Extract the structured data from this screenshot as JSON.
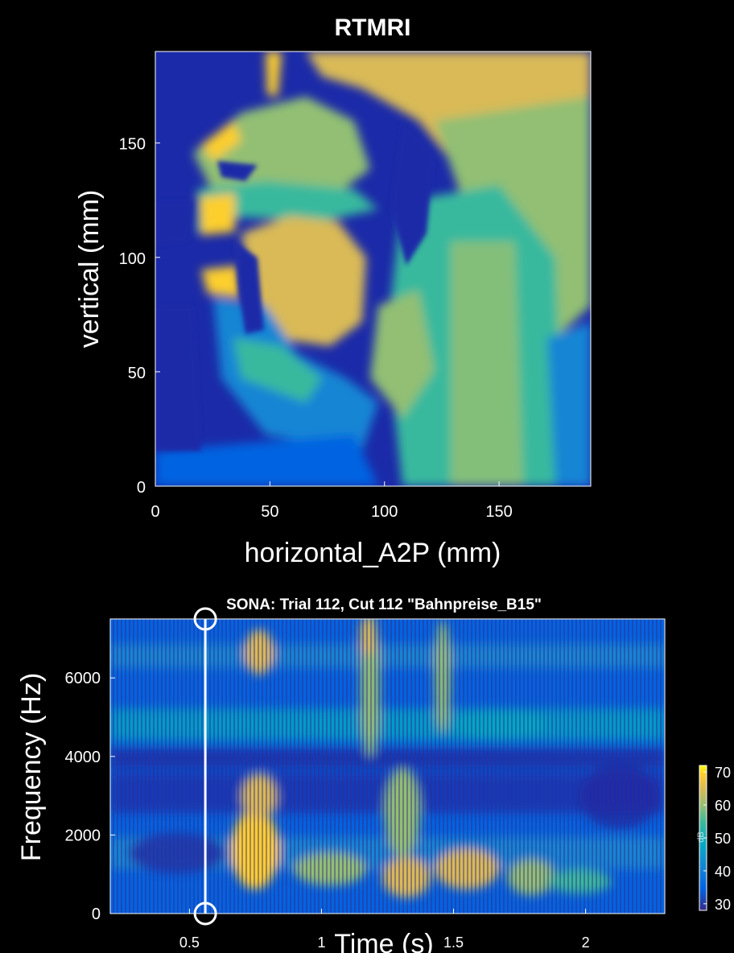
{
  "colors": {
    "background": "#000000",
    "axis": "#ffffff",
    "parula": [
      "#352a87",
      "#0363e1",
      "#1485d4",
      "#06a7c6",
      "#38b99e",
      "#92bf73",
      "#d9ba56",
      "#fcce2e",
      "#f9fb0e"
    ]
  },
  "chart_data": [
    {
      "type": "heatmap",
      "title": "RTMRI",
      "xlabel": "horizontal_A2P (mm)",
      "ylabel": "vertical (mm)",
      "xlim": [
        0,
        190
      ],
      "ylim": [
        0,
        190
      ],
      "xticks": [
        0,
        50,
        100,
        150
      ],
      "yticks": [
        0,
        50,
        100,
        150
      ],
      "xtick_labels": [
        "0",
        "50",
        "100",
        "150"
      ],
      "ytick_labels": [
        "0",
        "50",
        "100",
        "150"
      ],
      "grid": false
    },
    {
      "type": "heatmap",
      "title": "SONA: Trial 112, Cut 112 \"Bahnpreise_B15\"",
      "xlabel": "Time (s)",
      "ylabel": "Frequency (Hz)",
      "xlim": [
        0.2,
        2.3
      ],
      "ylim": [
        0,
        7500
      ],
      "xticks": [
        0.5,
        1,
        1.5,
        2
      ],
      "yticks": [
        0,
        2000,
        4000,
        6000
      ],
      "xtick_labels": [
        "0.5",
        "1",
        "1.5",
        "2"
      ],
      "ytick_labels": [
        "0",
        "2000",
        "4000",
        "6000"
      ],
      "cursor_time": 0.56,
      "colorbar": {
        "label": "dB",
        "ticks": [
          30,
          40,
          50,
          60,
          70
        ],
        "tick_labels": [
          "30",
          "40",
          "50",
          "60",
          "70"
        ],
        "range": [
          28,
          72
        ]
      },
      "grid": false
    }
  ]
}
